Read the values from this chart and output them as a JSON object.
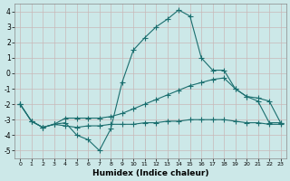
{
  "xlabel": "Humidex (Indice chaleur)",
  "background_color": "#cce8e8",
  "grid_color": "#b0d4d4",
  "line_color": "#1a6e6e",
  "xlim": [
    -0.5,
    23.5
  ],
  "ylim": [
    -5.5,
    4.5
  ],
  "yticks": [
    -5,
    -4,
    -3,
    -2,
    -1,
    0,
    1,
    2,
    3,
    4
  ],
  "xticks": [
    0,
    1,
    2,
    3,
    4,
    5,
    6,
    7,
    8,
    9,
    10,
    11,
    12,
    13,
    14,
    15,
    16,
    17,
    18,
    19,
    20,
    21,
    22,
    23
  ],
  "line1_x": [
    0,
    1,
    2,
    3,
    4,
    5,
    6,
    7,
    8,
    9,
    10,
    11,
    12,
    13,
    14,
    15,
    16,
    17,
    18,
    19,
    20,
    21,
    22,
    23
  ],
  "line1_y": [
    -2.0,
    -3.1,
    -3.5,
    -3.3,
    -3.2,
    -4.0,
    -4.3,
    -5.0,
    -3.6,
    -0.6,
    1.5,
    2.3,
    3.0,
    3.5,
    4.1,
    3.7,
    1.0,
    0.2,
    0.2,
    -1.0,
    -1.5,
    -1.8,
    -3.2,
    -3.2
  ],
  "line2_x": [
    0,
    1,
    2,
    3,
    4,
    5,
    6,
    7,
    8,
    9,
    10,
    11,
    12,
    13,
    14,
    15,
    16,
    17,
    18,
    19,
    20,
    21,
    22,
    23
  ],
  "line2_y": [
    -2.0,
    -3.1,
    -3.5,
    -3.3,
    -2.9,
    -2.9,
    -2.9,
    -2.9,
    -2.8,
    -2.6,
    -2.3,
    -2.0,
    -1.7,
    -1.4,
    -1.1,
    -0.8,
    -0.6,
    -0.4,
    -0.3,
    -1.0,
    -1.5,
    -1.6,
    -1.8,
    -3.2
  ],
  "line3_x": [
    0,
    1,
    2,
    3,
    4,
    5,
    6,
    7,
    8,
    9,
    10,
    11,
    12,
    13,
    14,
    15,
    16,
    17,
    18,
    19,
    20,
    21,
    22,
    23
  ],
  "line3_y": [
    -2.0,
    -3.1,
    -3.5,
    -3.3,
    -3.4,
    -3.5,
    -3.4,
    -3.4,
    -3.3,
    -3.3,
    -3.3,
    -3.2,
    -3.2,
    -3.1,
    -3.1,
    -3.0,
    -3.0,
    -3.0,
    -3.0,
    -3.1,
    -3.2,
    -3.2,
    -3.3,
    -3.3
  ]
}
